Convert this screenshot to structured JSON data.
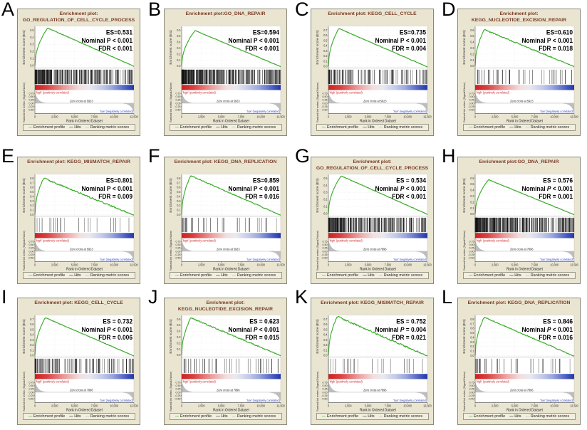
{
  "shared": {
    "xlabel": "Rank in Ordered Dataset",
    "x_ticks": [
      "0",
      "2,500",
      "5,000",
      "7,500",
      "10,000",
      "12,500"
    ],
    "es_ylabel": "Enrichment score (ES)",
    "metric_ylabel": "Ranked list metric (Signal2Noise)",
    "metric_ticks": [
      "0.75",
      "0.50",
      "0.25",
      "0.00",
      "-0.25",
      "-0.50"
    ],
    "pos_label": "'high' (positively correlated)",
    "neg_label": "'low' (negatively correlated)",
    "legend": [
      "Enrichment profile",
      "Hits",
      "Ranking metric scores"
    ],
    "colors": {
      "panel_bg": "#e9e5d1",
      "curve_green": "#3fae2e",
      "title_maroon": "#7a3c28",
      "pos_red": "#cc2a2a",
      "neg_blue": "#2a3fbf",
      "metric_gray": "#b9b9b9",
      "hit_black": "#111111",
      "gradient_left_red": "#cc2020",
      "gradient_right_blue": "#2436a8"
    }
  },
  "chart_data": [
    {
      "type": "line",
      "panel_letter": "A",
      "title_lines": [
        "Enrichment plot:",
        "GO_REGULATION_OF_CELL_CYCLE_PROCESS"
      ],
      "gene_set": "GO_REGULATION_OF_CELL_CYCLE_PROCESS",
      "stats": {
        "es_label": "ES=0.531",
        "p_label": "Nominal P < 0.001",
        "p_italic": false,
        "fdr_label": "FDR < 0.001"
      },
      "es_value": 0.531,
      "es_ticks": [
        "0.5",
        "0.4",
        "0.3",
        "0.2",
        "0.1",
        "0.0"
      ],
      "x_range": [
        0,
        12500
      ],
      "zero_cross_label": "Zero cross at 5923",
      "hits_count": 260,
      "seed": 101
    },
    {
      "type": "line",
      "panel_letter": "B",
      "title_lines": [
        "Enrichment plot:GO_DNA_REPAIR",
        ""
      ],
      "gene_set": "GO_DNA_REPAIR",
      "stats": {
        "es_label": "ES=0.594",
        "p_label": "Nominal P < 0.001",
        "p_italic": false,
        "fdr_label": "FDR < 0.001"
      },
      "es_value": 0.594,
      "es_ticks": [
        "0.6",
        "0.5",
        "0.4",
        "0.3",
        "0.2",
        "0.1",
        "0.0"
      ],
      "x_range": [
        0,
        12500
      ],
      "zero_cross_label": "Zero cross at 5923",
      "hits_count": 300,
      "seed": 102
    },
    {
      "type": "line",
      "panel_letter": "C",
      "title_lines": [
        "Enrichment plot: KEGG_CELL_CYCLE",
        ""
      ],
      "gene_set": "KEGG_CELL_CYCLE",
      "stats": {
        "es_label": "ES=0.735",
        "p_label": "Nominal P < 0.001",
        "p_italic": false,
        "fdr_label": "FDR = 0.004"
      },
      "es_value": 0.735,
      "es_ticks": [
        "0.7",
        "0.6",
        "0.5",
        "0.4",
        "0.3",
        "0.2",
        "0.1",
        "0.0"
      ],
      "x_range": [
        0,
        12500
      ],
      "zero_cross_label": "Zero cross at 5923",
      "hits_count": 115,
      "seed": 103
    },
    {
      "type": "line",
      "panel_letter": "D",
      "title_lines": [
        "Enrichment plot:",
        "KEGG_NUCLEOTIDE_EXCISION_REPAIR"
      ],
      "gene_set": "KEGG_NUCLEOTIDE_EXCISION_REPAIR",
      "stats": {
        "es_label": "ES=0.610",
        "p_label": "Nominal P < 0.001",
        "p_italic": false,
        "fdr_label": "FDR = 0.018"
      },
      "es_value": 0.61,
      "es_ticks": [
        "0.6",
        "0.5",
        "0.4",
        "0.3",
        "0.2",
        "0.1",
        "0.0"
      ],
      "x_range": [
        0,
        12500
      ],
      "zero_cross_label": "Zero cross at 5923",
      "hits_count": 42,
      "seed": 104
    },
    {
      "type": "line",
      "panel_letter": "E",
      "title_lines": [
        "Enrichment plot: KEGG_MISMATCH_REPAIR",
        ""
      ],
      "gene_set": "KEGG_MISMATCH_REPAIR",
      "stats": {
        "es_label": "ES=0.801",
        "p_label": "Nominal P < 0.001",
        "p_italic": false,
        "fdr_label": "FDR = 0.009"
      },
      "es_value": 0.801,
      "es_ticks": [
        "0.8",
        "0.7",
        "0.6",
        "0.5",
        "0.4",
        "0.3",
        "0.2",
        "0.1",
        "0.0"
      ],
      "x_range": [
        0,
        12500
      ],
      "zero_cross_label": "Zero cross at 5923",
      "hits_count": 22,
      "seed": 105
    },
    {
      "type": "line",
      "panel_letter": "F",
      "title_lines": [
        "Enrichment plot: KEGG_DNA_REPLICATION",
        ""
      ],
      "gene_set": "KEGG_DNA_REPLICATION",
      "stats": {
        "es_label": "ES=0.859",
        "p_label": "Nominal P < 0.001",
        "p_italic": false,
        "fdr_label": "FDR = 0.016"
      },
      "es_value": 0.859,
      "es_ticks": [
        "0.8",
        "0.7",
        "0.6",
        "0.5",
        "0.4",
        "0.3",
        "0.2",
        "0.1",
        "0.0"
      ],
      "x_range": [
        0,
        12500
      ],
      "zero_cross_label": "Zero cross at 5923",
      "hits_count": 35,
      "seed": 106
    },
    {
      "type": "line",
      "panel_letter": "G",
      "title_lines": [
        "Enrichment plot:",
        "GO_REGULATION_OF_CELL_CYCLE_PROCESS"
      ],
      "gene_set": "GO_REGULATION_OF_CELL_CYCLE_PROCESS",
      "stats": {
        "es_label": "ES = 0.534",
        "p_label": "Nominal P < 0.001",
        "p_italic": true,
        "fdr_label": "FDR < 0.001"
      },
      "es_value": 0.534,
      "es_ticks": [
        "0.5",
        "0.4",
        "0.3",
        "0.2",
        "0.1",
        "0.0"
      ],
      "x_range": [
        0,
        12500
      ],
      "zero_cross_label": "Zero cross at 7896",
      "hits_count": 260,
      "seed": 101
    },
    {
      "type": "line",
      "panel_letter": "H",
      "title_lines": [
        "Enrichment plot:GO_DNA_REPAIR",
        ""
      ],
      "gene_set": "GO_DNA_REPAIR",
      "stats": {
        "es_label": "ES = 0.576",
        "p_label": "Nominal P < 0.001",
        "p_italic": true,
        "fdr_label": "FDR = 0.001"
      },
      "es_value": 0.576,
      "es_ticks": [
        "0.6",
        "0.5",
        "0.4",
        "0.3",
        "0.2",
        "0.1",
        "0.0"
      ],
      "x_range": [
        0,
        12500
      ],
      "zero_cross_label": "Zero cross at 7896",
      "hits_count": 300,
      "seed": 102
    },
    {
      "type": "line",
      "panel_letter": "I",
      "title_lines": [
        "Enrichment plot: KEGG_CELL_CYCLE",
        ""
      ],
      "gene_set": "KEGG_CELL_CYCLE",
      "stats": {
        "es_label": "ES = 0.732",
        "p_label": "Nominal P < 0.001",
        "p_italic": true,
        "fdr_label": "FDR = 0.006"
      },
      "es_value": 0.732,
      "es_ticks": [
        "0.7",
        "0.6",
        "0.5",
        "0.4",
        "0.3",
        "0.2",
        "0.1",
        "0.0"
      ],
      "x_range": [
        0,
        12500
      ],
      "zero_cross_label": "Zero cross at 7896",
      "hits_count": 115,
      "seed": 103
    },
    {
      "type": "line",
      "panel_letter": "J",
      "title_lines": [
        "Enrichment plot:",
        "KEGG_NUCLEOTIDE_EXCISION_REPAIR"
      ],
      "gene_set": "KEGG_NUCLEOTIDE_EXCISION_REPAIR",
      "stats": {
        "es_label": "ES = 0.623",
        "p_label": "Nominal P < 0.001",
        "p_italic": true,
        "fdr_label": "FDR = 0.015"
      },
      "es_value": 0.623,
      "es_ticks": [
        "0.6",
        "0.5",
        "0.4",
        "0.3",
        "0.2",
        "0.1",
        "0.0"
      ],
      "x_range": [
        0,
        12500
      ],
      "zero_cross_label": "Zero cross at 7896",
      "hits_count": 42,
      "seed": 104
    },
    {
      "type": "line",
      "panel_letter": "K",
      "title_lines": [
        "Enrichment plot: KEGG_MISMATCH_REPAIR",
        ""
      ],
      "gene_set": "KEGG_MISMATCH_REPAIR",
      "stats": {
        "es_label": "ES = 0.752",
        "p_label": "Nominal P = 0.004",
        "p_italic": true,
        "fdr_label": "FDR = 0.021"
      },
      "es_value": 0.752,
      "es_ticks": [
        "0.7",
        "0.6",
        "0.5",
        "0.4",
        "0.3",
        "0.2",
        "0.1",
        "0.0"
      ],
      "x_range": [
        0,
        12500
      ],
      "zero_cross_label": "Zero cross at 7896",
      "hits_count": 22,
      "seed": 105
    },
    {
      "type": "line",
      "panel_letter": "L",
      "title_lines": [
        "Enrichment plot: KEGG_DNA_REPLICATION",
        ""
      ],
      "gene_set": "KEGG_DNA_REPLICATION",
      "stats": {
        "es_label": "ES = 0.846",
        "p_label": "Nominal P < 0.001",
        "p_italic": true,
        "fdr_label": "FDR = 0.016"
      },
      "es_value": 0.846,
      "es_ticks": [
        "0.8",
        "0.7",
        "0.6",
        "0.5",
        "0.4",
        "0.3",
        "0.2",
        "0.1",
        "0.0"
      ],
      "x_range": [
        0,
        12500
      ],
      "zero_cross_label": "Zero cross at 7896",
      "hits_count": 35,
      "seed": 106
    }
  ]
}
